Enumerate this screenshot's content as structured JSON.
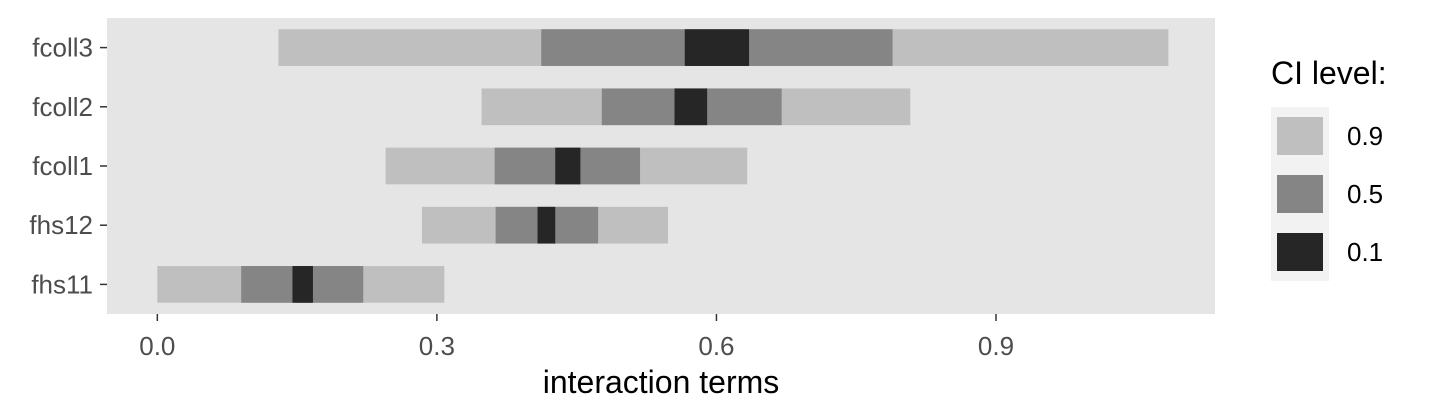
{
  "chart_data": {
    "type": "bar",
    "orientation": "horizontal-interval",
    "xlabel": "interaction terms",
    "ylabel": "",
    "xlim": [
      -0.054,
      1.135
    ],
    "x_ticks": [
      0.0,
      0.3,
      0.6,
      0.9
    ],
    "x_tick_labels": [
      "0.0",
      "0.3",
      "0.6",
      "0.9"
    ],
    "categories": [
      "fcoll3",
      "fcoll2",
      "fcoll1",
      "fhs12",
      "fhs11"
    ],
    "grid": false,
    "legend": {
      "title": "CI level:",
      "position": "right",
      "levels": [
        {
          "label": "0.9",
          "color": "#bfbfbf"
        },
        {
          "label": "0.5",
          "color": "#858585"
        },
        {
          "label": "0.1",
          "color": "#262626"
        }
      ]
    },
    "series": [
      {
        "name": "0.9",
        "values": [
          [
            0.13,
            1.085
          ],
          [
            0.348,
            0.808
          ],
          [
            0.245,
            0.633
          ],
          [
            0.284,
            0.548
          ],
          [
            0.0,
            0.308
          ]
        ]
      },
      {
        "name": "0.5",
        "values": [
          [
            0.412,
            0.789
          ],
          [
            0.477,
            0.67
          ],
          [
            0.362,
            0.518
          ],
          [
            0.363,
            0.473
          ],
          [
            0.09,
            0.221
          ]
        ]
      },
      {
        "name": "0.1",
        "values": [
          [
            0.566,
            0.635
          ],
          [
            0.555,
            0.59
          ],
          [
            0.427,
            0.454
          ],
          [
            0.408,
            0.427
          ],
          [
            0.145,
            0.167
          ]
        ]
      }
    ],
    "colors": {
      "panel_background": "#e5e5e5",
      "tick_color": "#333333"
    }
  }
}
